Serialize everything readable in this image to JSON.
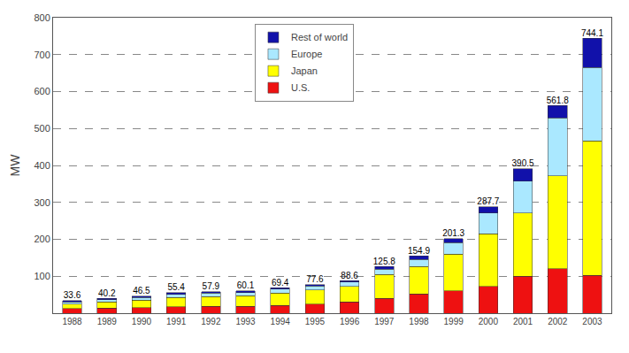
{
  "chart_data": {
    "type": "bar",
    "stacked": true,
    "categories": [
      "1988",
      "1989",
      "1990",
      "1991",
      "1992",
      "1993",
      "1994",
      "1995",
      "1996",
      "1997",
      "1998",
      "1999",
      "2000",
      "2001",
      "2002",
      "2003"
    ],
    "series": [
      {
        "name": "U.S.",
        "color": "#ee1111",
        "values": [
          12.0,
          14.0,
          15.0,
          17.0,
          18.0,
          18.5,
          21.0,
          24.0,
          30.0,
          40.0,
          51.7,
          60.0,
          73.0,
          100.3,
          120.6,
          103.0
        ]
      },
      {
        "name": "Japan",
        "color": "#ffff00",
        "values": [
          13.0,
          16.0,
          20.0,
          25.0,
          27.0,
          28.5,
          33.0,
          39.0,
          42.0,
          65.0,
          75.0,
          100.0,
          142.0,
          171.2,
          251.1,
          363.9
        ]
      },
      {
        "name": "Europe",
        "color": "#aae8ff",
        "values": [
          5.5,
          6.5,
          7.5,
          9.0,
          9.0,
          9.0,
          11.0,
          11.0,
          12.0,
          14.0,
          19.0,
          31.0,
          56.0,
          86.4,
          157.3,
          198.7
        ]
      },
      {
        "name": "Rest of world",
        "color": "#1111aa",
        "values": [
          3.1,
          3.7,
          4.0,
          4.4,
          3.9,
          4.1,
          4.4,
          3.6,
          4.6,
          6.8,
          9.2,
          10.3,
          16.7,
          32.6,
          32.8,
          78.5
        ]
      }
    ],
    "totals": [
      33.6,
      40.2,
      46.5,
      55.4,
      57.9,
      60.1,
      69.4,
      77.6,
      88.6,
      125.8,
      154.9,
      201.3,
      287.7,
      390.5,
      561.8,
      744.1
    ],
    "data_labels": true,
    "ylabel": "MW",
    "ylim": [
      0,
      800
    ],
    "yticks": [
      100,
      200,
      300,
      400,
      500,
      600,
      700,
      800
    ],
    "grid": true,
    "legend": "upper center"
  }
}
